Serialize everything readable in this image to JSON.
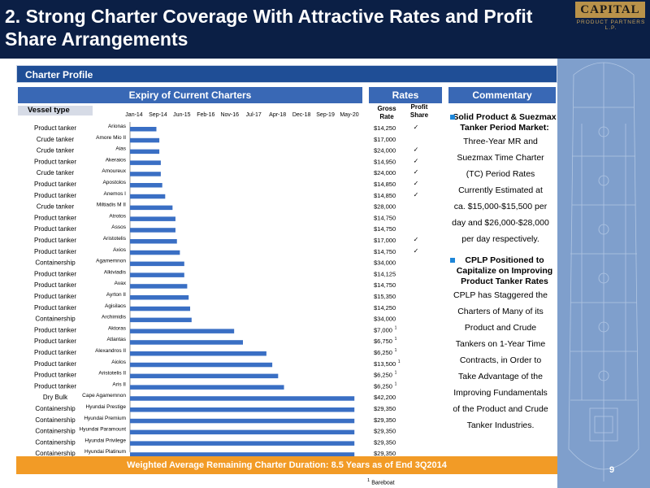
{
  "header": {
    "title": "2. Strong Charter Coverage With Attractive Rates and Profit Share Arrangements",
    "logo_text": "CAPITAL",
    "logo_subtext": "PRODUCT PARTNERS L.P."
  },
  "section_title": "Charter Profile",
  "columns": {
    "expiry": "Expiry of Current Charters",
    "rates": "Rates",
    "commentary": "Commentary",
    "vessel_type": "Vessel type",
    "gross_rate": "Gross Rate",
    "profit_share": "Profit Share"
  },
  "chart_data": {
    "type": "bar",
    "orientation": "horizontal",
    "x_tick_labels": [
      "Jan-14",
      "Sep-14",
      "Jun-15",
      "Feb-16",
      "Nov-16",
      "Jul-17",
      "Apr-18",
      "Dec-18",
      "Sep-19",
      "May-20"
    ],
    "x_range_months": [
      0,
      77
    ],
    "rows": [
      {
        "type": "Product tanker",
        "vessel": "Arionas",
        "expiry_month": 9,
        "rate": "$14,250",
        "profit_share": true,
        "bareboat": false
      },
      {
        "type": "Crude tanker",
        "vessel": "Amore Mio II",
        "expiry_month": 10,
        "rate": "$17,000",
        "profit_share": false,
        "bareboat": false
      },
      {
        "type": "Crude tanker",
        "vessel": "Aias",
        "expiry_month": 10,
        "rate": "$24,000",
        "profit_share": true,
        "bareboat": false
      },
      {
        "type": "Product tanker",
        "vessel": "Akeraios",
        "expiry_month": 10.5,
        "rate": "$14,950",
        "profit_share": true,
        "bareboat": false
      },
      {
        "type": "Crude tanker",
        "vessel": "Amoureux",
        "expiry_month": 10.5,
        "rate": "$24,000",
        "profit_share": true,
        "bareboat": false
      },
      {
        "type": "Product tanker",
        "vessel": "Apostolos",
        "expiry_month": 11,
        "rate": "$14,850",
        "profit_share": true,
        "bareboat": false
      },
      {
        "type": "Product tanker",
        "vessel": "Anemos I",
        "expiry_month": 12,
        "rate": "$14,850",
        "profit_share": true,
        "bareboat": false
      },
      {
        "type": "Crude tanker",
        "vessel": "Miltiadis M II",
        "expiry_month": 14.5,
        "rate": "$28,000",
        "profit_share": false,
        "bareboat": false
      },
      {
        "type": "Product tanker",
        "vessel": "Atrotos",
        "expiry_month": 15.5,
        "rate": "$14,750",
        "profit_share": false,
        "bareboat": false
      },
      {
        "type": "Product tanker",
        "vessel": "Assos",
        "expiry_month": 15.5,
        "rate": "$14,750",
        "profit_share": false,
        "bareboat": false
      },
      {
        "type": "Product tanker",
        "vessel": "Aristotelis",
        "expiry_month": 16,
        "rate": "$17,000",
        "profit_share": true,
        "bareboat": false
      },
      {
        "type": "Product tanker",
        "vessel": "Axios",
        "expiry_month": 17,
        "rate": "$14,750",
        "profit_share": true,
        "bareboat": false
      },
      {
        "type": "Containership",
        "vessel": "Agamemnon",
        "expiry_month": 18.5,
        "rate": "$34,000",
        "profit_share": false,
        "bareboat": false
      },
      {
        "type": "Product tanker",
        "vessel": "Alkiviadis",
        "expiry_month": 18.5,
        "rate": "$14,125",
        "profit_share": false,
        "bareboat": false
      },
      {
        "type": "Product tanker",
        "vessel": "Avax",
        "expiry_month": 19.5,
        "rate": "$14,750",
        "profit_share": false,
        "bareboat": false
      },
      {
        "type": "Product tanker",
        "vessel": "Ayrton II",
        "expiry_month": 20,
        "rate": "$15,350",
        "profit_share": false,
        "bareboat": false
      },
      {
        "type": "Product tanker",
        "vessel": "Agisilaos",
        "expiry_month": 20.5,
        "rate": "$14,250",
        "profit_share": false,
        "bareboat": false
      },
      {
        "type": "Containership",
        "vessel": "Archimidis",
        "expiry_month": 21,
        "rate": "$34,000",
        "profit_share": false,
        "bareboat": false
      },
      {
        "type": "Product tanker",
        "vessel": "Aktoras",
        "expiry_month": 35.5,
        "rate": "$7,000",
        "profit_share": false,
        "bareboat": true
      },
      {
        "type": "Product tanker",
        "vessel": "Atlantas",
        "expiry_month": 38.5,
        "rate": "$6,750",
        "profit_share": false,
        "bareboat": true
      },
      {
        "type": "Product tanker",
        "vessel": "Alexandros II",
        "expiry_month": 46.5,
        "rate": "$6,250",
        "profit_share": false,
        "bareboat": true
      },
      {
        "type": "Product tanker",
        "vessel": "Aiolos",
        "expiry_month": 48.5,
        "rate": "$13,500",
        "profit_share": false,
        "bareboat": true
      },
      {
        "type": "Product tanker",
        "vessel": "Aristotelis II",
        "expiry_month": 50.5,
        "rate": "$6,250",
        "profit_share": false,
        "bareboat": true
      },
      {
        "type": "Product tanker",
        "vessel": "Aris II",
        "expiry_month": 52.5,
        "rate": "$6,250",
        "profit_share": false,
        "bareboat": true
      },
      {
        "type": "Dry Bulk",
        "vessel": "Cape Agamemnon",
        "expiry_month": 76.5,
        "rate": "$42,200",
        "profit_share": false,
        "bareboat": false
      },
      {
        "type": "Containership",
        "vessel": "Hyundai Prestige",
        "expiry_month": 76.5,
        "rate": "$29,350",
        "profit_share": false,
        "bareboat": false
      },
      {
        "type": "Containership",
        "vessel": "Hyundai Premium",
        "expiry_month": 76.5,
        "rate": "$29,350",
        "profit_share": false,
        "bareboat": false
      },
      {
        "type": "Containership",
        "vessel": "Hyundai Paramount",
        "expiry_month": 76.5,
        "rate": "$29,350",
        "profit_share": false,
        "bareboat": false
      },
      {
        "type": "Containership",
        "vessel": "Hyundai Privilege",
        "expiry_month": 76.5,
        "rate": "$29,350",
        "profit_share": false,
        "bareboat": false
      },
      {
        "type": "Containership",
        "vessel": "Hyundai Platinum",
        "expiry_month": 76.5,
        "rate": "$29,350",
        "profit_share": false,
        "bareboat": false
      }
    ],
    "bar_color": "#3a6fc4",
    "check_mark": "✓",
    "bareboat_marker": "1"
  },
  "commentary": [
    {
      "heading": "Solid Product & Suezmax Tanker Period Market:",
      "lines": [
        "Three-Year MR and",
        "Suezmax Time Charter",
        "(TC) Period Rates",
        "Currently Estimated at",
        "ca. $15,000-$15,500 per",
        "day and $26,000-$28,000",
        "per day respectively."
      ]
    },
    {
      "heading": "CPLP Positioned to Capitalize on Improving Product Tanker Rates",
      "lines": [
        "CPLP has Staggered the",
        "Charters of Many of its",
        "Product and Crude",
        "Tankers on 1-Year Time",
        "Contracts, in Order to",
        "Take Advantage of the",
        "Improving Fundamentals",
        "of the  Product and Crude",
        "Tanker  Industries."
      ]
    }
  ],
  "bottom_bar": "Weighted Average Remaining Charter Duration: 8.5 Years as of End 3Q2014",
  "footnote": "Bareboat",
  "footnote_marker": "1",
  "page_number": "9",
  "colors": {
    "header_bg": "#0b1f45",
    "section_bar": "#1f4e96",
    "column_header": "#3968b5",
    "bottom_bar": "#f29b26",
    "blueprint": "#7f9fcc",
    "logo_gold": "#b9924a"
  }
}
